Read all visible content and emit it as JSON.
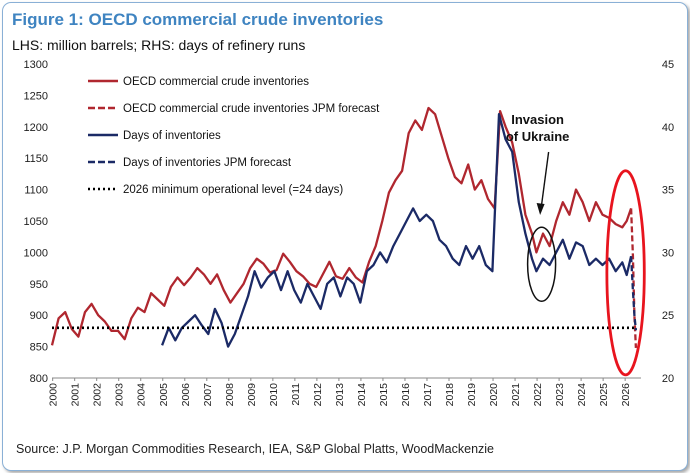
{
  "figure": {
    "title": "Figure 1: OECD commercial crude inventories",
    "subtitle": "LHS: million barrels; RHS: days of refinery runs",
    "source": "Source: J.P. Morgan Commodities Research, IEA, S&P Global Platts, WoodMackenzie"
  },
  "chart_data": {
    "type": "line",
    "xlim": [
      2000,
      2026.75
    ],
    "x_ticks": [
      "2000",
      "2001",
      "2002",
      "2003",
      "2004",
      "2005",
      "2006",
      "2007",
      "2008",
      "2009",
      "2010",
      "2011",
      "2012",
      "2013",
      "2014",
      "2015",
      "2016",
      "2017",
      "2018",
      "2019",
      "2020",
      "2021",
      "2022",
      "2023",
      "2024",
      "2025",
      "2026"
    ],
    "y_left": {
      "lim": [
        800,
        1300
      ],
      "ticks": [
        "800",
        "850",
        "900",
        "950",
        "1000",
        "1050",
        "1100",
        "1150",
        "1200",
        "1250",
        "1300"
      ]
    },
    "y_right": {
      "lim": [
        20,
        45
      ],
      "ticks": [
        "20",
        "25",
        "30",
        "35",
        "40",
        "45"
      ]
    },
    "grid": false,
    "legend_position": "top-left",
    "annotations": [
      {
        "text_lines": [
          "Invasion",
          "of Ukraine"
        ],
        "x": 2022.1,
        "y_right": 28.9
      }
    ],
    "highlight_ellipse": {
      "x_range": [
        2025.2,
        2026.9
      ],
      "y_left_range": [
        805,
        1130
      ],
      "color": "#e8141e"
    },
    "series": [
      {
        "name": "OECD commercial crude inventories",
        "axis": "left",
        "color": "#b0272f",
        "style": "solid",
        "points": [
          [
            2000.0,
            852
          ],
          [
            2000.3,
            895
          ],
          [
            2000.6,
            905
          ],
          [
            2000.9,
            878
          ],
          [
            2001.2,
            866
          ],
          [
            2001.5,
            905
          ],
          [
            2001.8,
            918
          ],
          [
            2002.1,
            900
          ],
          [
            2002.4,
            890
          ],
          [
            2002.7,
            875
          ],
          [
            2003.0,
            875
          ],
          [
            2003.3,
            862
          ],
          [
            2003.6,
            895
          ],
          [
            2003.9,
            912
          ],
          [
            2004.2,
            905
          ],
          [
            2004.5,
            935
          ],
          [
            2004.8,
            925
          ],
          [
            2005.1,
            915
          ],
          [
            2005.4,
            945
          ],
          [
            2005.7,
            960
          ],
          [
            2006.0,
            948
          ],
          [
            2006.3,
            960
          ],
          [
            2006.6,
            975
          ],
          [
            2006.9,
            965
          ],
          [
            2007.2,
            950
          ],
          [
            2007.5,
            965
          ],
          [
            2007.8,
            940
          ],
          [
            2008.1,
            920
          ],
          [
            2008.4,
            935
          ],
          [
            2008.7,
            950
          ],
          [
            2009.0,
            975
          ],
          [
            2009.3,
            990
          ],
          [
            2009.6,
            982
          ],
          [
            2009.9,
            968
          ],
          [
            2010.2,
            972
          ],
          [
            2010.5,
            998
          ],
          [
            2010.8,
            985
          ],
          [
            2011.1,
            970
          ],
          [
            2011.4,
            962
          ],
          [
            2011.7,
            950
          ],
          [
            2012.0,
            945
          ],
          [
            2012.3,
            965
          ],
          [
            2012.6,
            985
          ],
          [
            2012.9,
            962
          ],
          [
            2013.2,
            958
          ],
          [
            2013.5,
            975
          ],
          [
            2013.8,
            960
          ],
          [
            2014.1,
            952
          ],
          [
            2014.4,
            985
          ],
          [
            2014.7,
            1010
          ],
          [
            2015.0,
            1050
          ],
          [
            2015.3,
            1095
          ],
          [
            2015.6,
            1115
          ],
          [
            2015.9,
            1130
          ],
          [
            2016.2,
            1190
          ],
          [
            2016.5,
            1210
          ],
          [
            2016.8,
            1195
          ],
          [
            2017.1,
            1230
          ],
          [
            2017.4,
            1220
          ],
          [
            2017.7,
            1185
          ],
          [
            2018.0,
            1150
          ],
          [
            2018.3,
            1120
          ],
          [
            2018.6,
            1110
          ],
          [
            2018.9,
            1140
          ],
          [
            2019.2,
            1100
          ],
          [
            2019.5,
            1115
          ],
          [
            2019.8,
            1085
          ],
          [
            2020.1,
            1070
          ],
          [
            2020.35,
            1225
          ],
          [
            2020.6,
            1200
          ],
          [
            2020.9,
            1175
          ],
          [
            2021.2,
            1125
          ],
          [
            2021.5,
            1060
          ],
          [
            2021.8,
            1030
          ],
          [
            2022.0,
            1000
          ],
          [
            2022.3,
            1030
          ],
          [
            2022.6,
            1010
          ],
          [
            2022.9,
            1050
          ],
          [
            2023.2,
            1080
          ],
          [
            2023.5,
            1060
          ],
          [
            2023.8,
            1100
          ],
          [
            2024.1,
            1080
          ],
          [
            2024.4,
            1050
          ],
          [
            2024.7,
            1080
          ],
          [
            2025.0,
            1060
          ],
          [
            2025.3,
            1055
          ],
          [
            2025.6,
            1045
          ],
          [
            2025.9,
            1040
          ],
          [
            2026.1,
            1050
          ],
          [
            2026.3,
            1070
          ]
        ]
      },
      {
        "name": "OECD commercial crude inventories JPM forecast",
        "axis": "left",
        "color": "#b0272f",
        "style": "dashed",
        "points": [
          [
            2026.3,
            1070
          ],
          [
            2026.38,
            995
          ],
          [
            2026.45,
            900
          ],
          [
            2026.52,
            848
          ]
        ]
      },
      {
        "name": "Days of inventories",
        "axis": "right",
        "color": "#1b2a66",
        "style": "solid",
        "points": [
          [
            2005.0,
            22.6
          ],
          [
            2005.3,
            24.0
          ],
          [
            2005.6,
            23.0
          ],
          [
            2005.9,
            24.0
          ],
          [
            2006.2,
            24.5
          ],
          [
            2006.5,
            25.0
          ],
          [
            2006.8,
            24.2
          ],
          [
            2007.1,
            23.5
          ],
          [
            2007.4,
            25.5
          ],
          [
            2007.7,
            24.4
          ],
          [
            2008.0,
            22.5
          ],
          [
            2008.3,
            23.5
          ],
          [
            2008.6,
            25.0
          ],
          [
            2008.9,
            26.5
          ],
          [
            2009.2,
            28.5
          ],
          [
            2009.5,
            27.2
          ],
          [
            2009.8,
            28.0
          ],
          [
            2010.1,
            28.5
          ],
          [
            2010.4,
            27.0
          ],
          [
            2010.7,
            28.5
          ],
          [
            2011.0,
            27.0
          ],
          [
            2011.3,
            26.0
          ],
          [
            2011.6,
            27.5
          ],
          [
            2011.9,
            26.5
          ],
          [
            2012.2,
            25.5
          ],
          [
            2012.5,
            27.5
          ],
          [
            2012.8,
            28.0
          ],
          [
            2013.1,
            26.5
          ],
          [
            2013.4,
            28.0
          ],
          [
            2013.7,
            27.5
          ],
          [
            2014.0,
            26.0
          ],
          [
            2014.3,
            28.5
          ],
          [
            2014.6,
            29.0
          ],
          [
            2014.9,
            30.0
          ],
          [
            2015.2,
            29.2
          ],
          [
            2015.5,
            30.5
          ],
          [
            2015.8,
            31.5
          ],
          [
            2016.1,
            32.5
          ],
          [
            2016.4,
            33.5
          ],
          [
            2016.7,
            32.5
          ],
          [
            2017.0,
            33.0
          ],
          [
            2017.3,
            32.5
          ],
          [
            2017.6,
            31.0
          ],
          [
            2017.9,
            30.5
          ],
          [
            2018.2,
            29.5
          ],
          [
            2018.5,
            29.0
          ],
          [
            2018.8,
            30.5
          ],
          [
            2019.1,
            29.5
          ],
          [
            2019.4,
            30.5
          ],
          [
            2019.7,
            29.0
          ],
          [
            2020.0,
            28.5
          ],
          [
            2020.3,
            41.0
          ],
          [
            2020.6,
            39.0
          ],
          [
            2020.9,
            38.0
          ],
          [
            2021.2,
            34.0
          ],
          [
            2021.5,
            31.5
          ],
          [
            2021.8,
            29.5
          ],
          [
            2022.0,
            28.5
          ],
          [
            2022.3,
            29.5
          ],
          [
            2022.6,
            29.0
          ],
          [
            2022.9,
            30.0
          ],
          [
            2023.2,
            31.0
          ],
          [
            2023.5,
            29.5
          ],
          [
            2023.8,
            30.8
          ],
          [
            2024.1,
            30.5
          ],
          [
            2024.4,
            29.0
          ],
          [
            2024.7,
            29.5
          ],
          [
            2025.0,
            29.0
          ],
          [
            2025.3,
            29.5
          ],
          [
            2025.6,
            28.5
          ],
          [
            2025.9,
            29.2
          ],
          [
            2026.1,
            28.2
          ],
          [
            2026.3,
            29.7
          ]
        ]
      },
      {
        "name": "Days of inventories JPM forecast",
        "axis": "right",
        "color": "#1b2a66",
        "style": "dashed",
        "points": [
          [
            2026.3,
            29.7
          ],
          [
            2026.38,
            27.0
          ],
          [
            2026.45,
            25.0
          ],
          [
            2026.52,
            23.8
          ]
        ]
      },
      {
        "name": "2026 minimum operational level (=24 days)",
        "axis": "right",
        "color": "#000000",
        "style": "dotted",
        "points": [
          [
            2000.0,
            24
          ],
          [
            2026.5,
            24
          ]
        ]
      }
    ]
  }
}
